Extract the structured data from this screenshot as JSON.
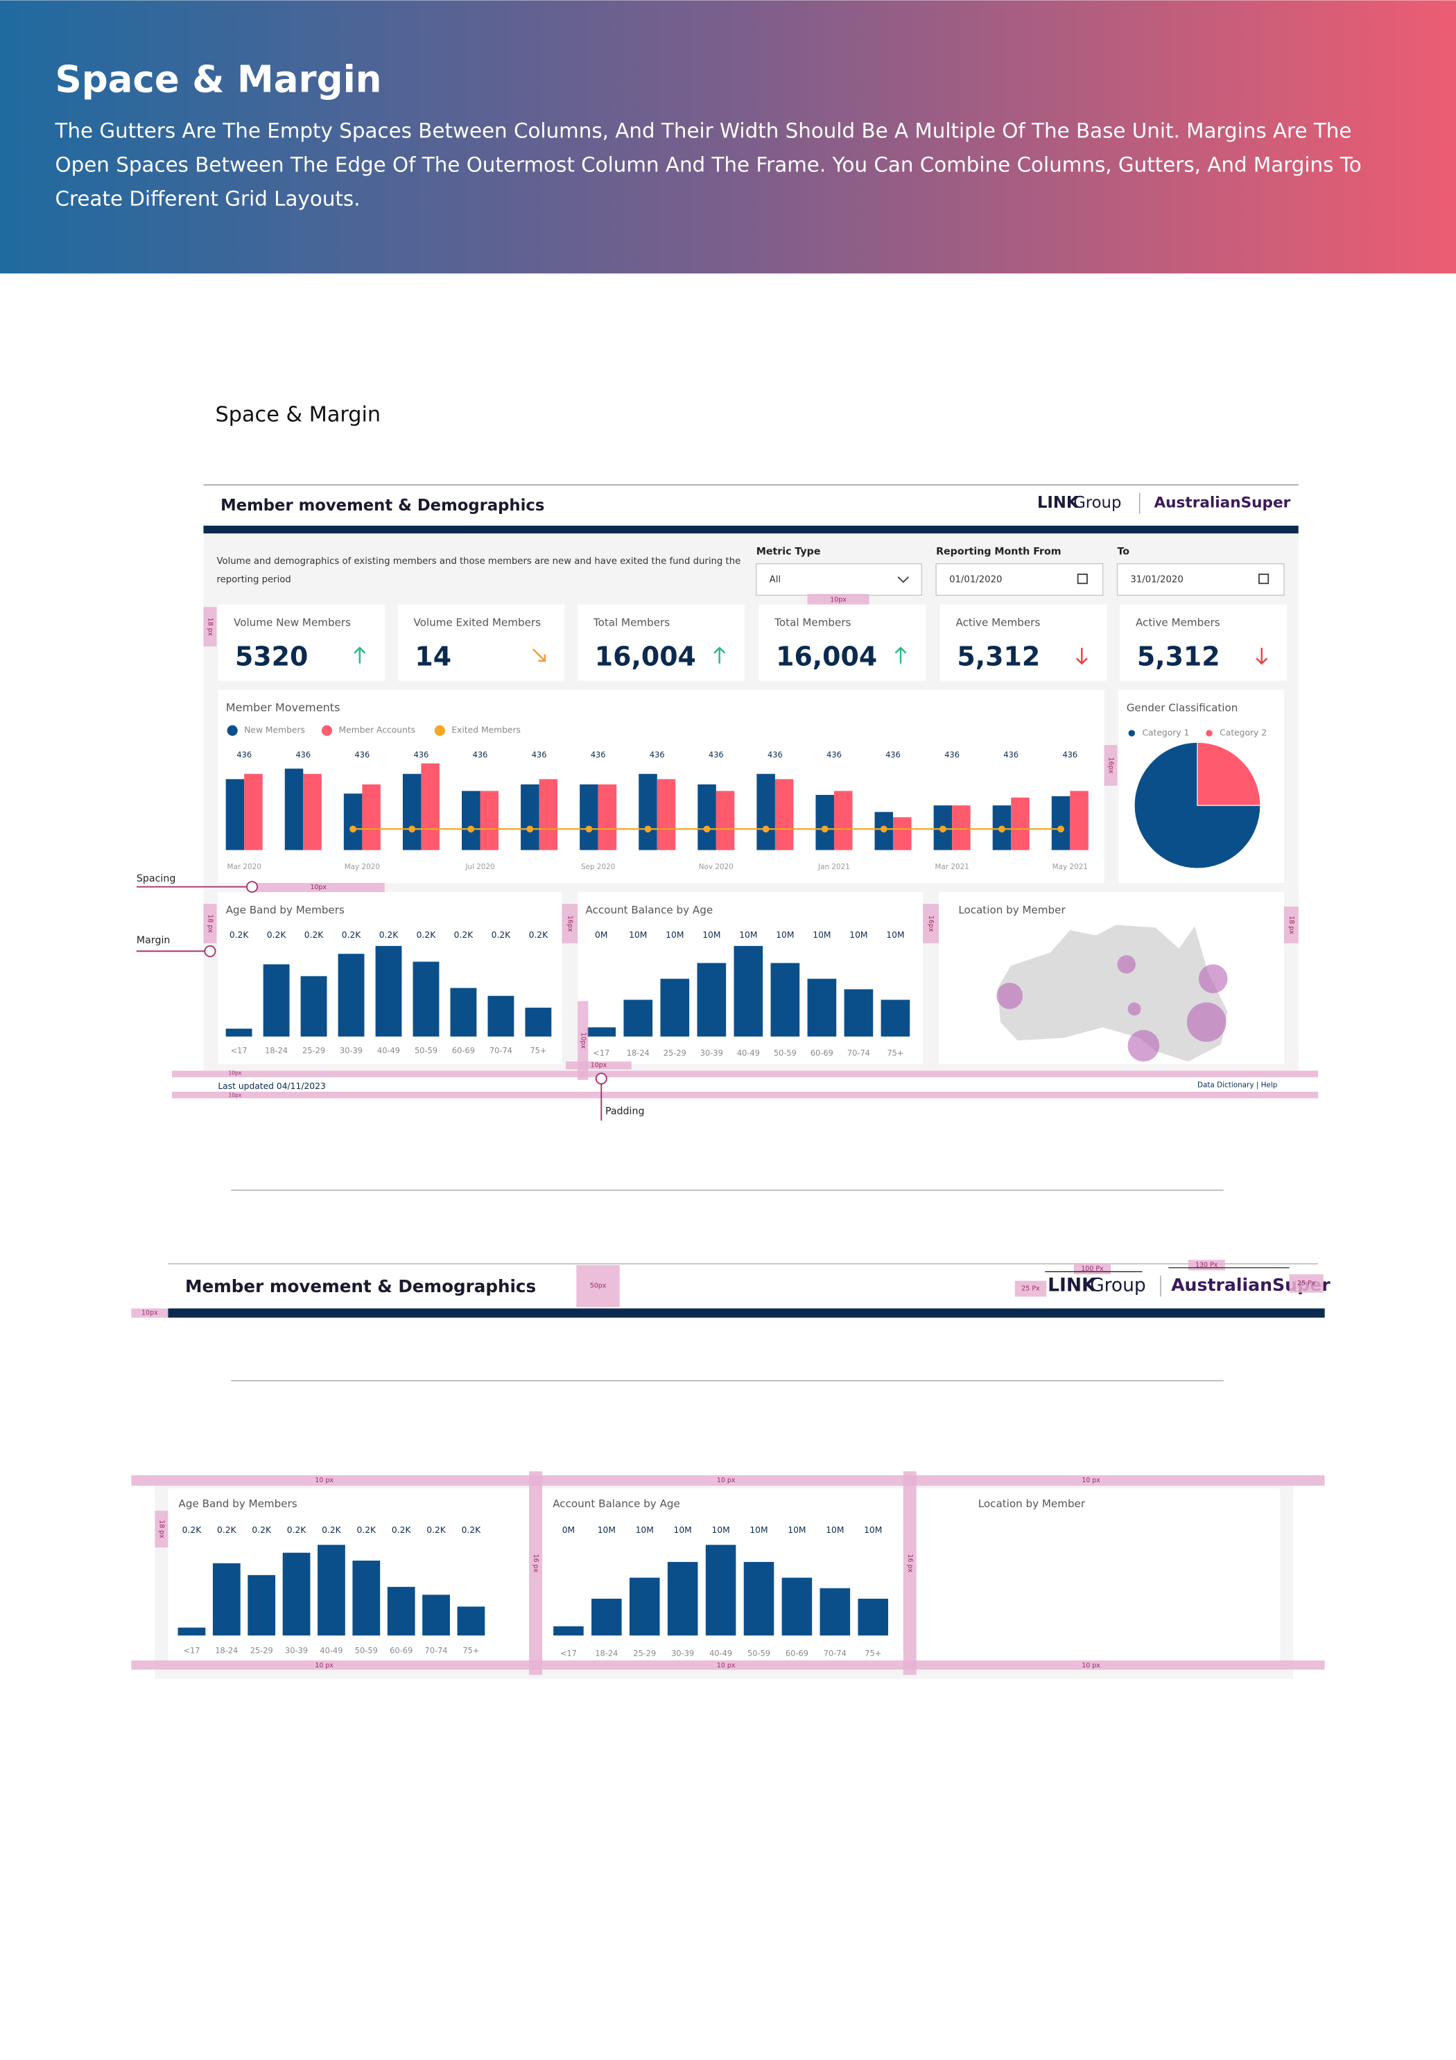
{
  "header": {
    "title": "Space & Margin",
    "description": [
      "The Gutters Are The Empty Spaces Between Columns, And Their Width Should Be A Multiple Of The Base Unit. Margins Are The",
      "Open Spaces Between The Edge Of The Outermost Column And The Frame. You Can Combine Columns, Gutters, And Margins To",
      "Create Different Grid Layouts."
    ]
  },
  "section_title": "Space & Margin",
  "dashboard": {
    "title": "Member movement & Demographics",
    "logo_link": "LINK",
    "logo_group": "Group",
    "logo_super": "AustralianSuper",
    "description": [
      "Volume and demographics of existing members and those members are new and have exited the fund during the",
      "reporting period"
    ],
    "filters": [
      {
        "label": "Metric Type",
        "value": "All"
      },
      {
        "label": "Reporting Month From",
        "value": "01/01/2020"
      },
      {
        "label": "To",
        "value": "31/01/2020"
      }
    ],
    "kpis": [
      {
        "label": "Volume New Members",
        "value": "5320",
        "trend": "up",
        "color": "#27b88a"
      },
      {
        "label": "Volume Exited Members",
        "value": "14",
        "trend": "down-right",
        "color": "#f39c32"
      },
      {
        "label": "Total Members",
        "value": "16,004",
        "trend": "up",
        "color": "#27b88a"
      },
      {
        "label": "Total Members",
        "value": "16,004",
        "trend": "up",
        "color": "#27b88a"
      },
      {
        "label": "Active Members",
        "value": "5,312",
        "trend": "down",
        "color": "#e8433f"
      },
      {
        "label": "Active Members",
        "value": "5,312",
        "trend": "down",
        "color": "#e8433f"
      }
    ],
    "map_title": "Location by Member",
    "footer_left": "Last updated 04/11/2023",
    "footer_right": "Data Dictionary  |  Help"
  },
  "chart_data": [
    {
      "type": "bar",
      "title": "Member Movements",
      "categories": [
        "Mar 2020",
        null,
        "May 2020",
        null,
        "Jul 2020",
        null,
        "Sep 2020",
        null,
        "Nov 2020",
        null,
        "Jan 2021",
        null,
        "Mar 2021",
        null,
        "May 2021"
      ],
      "series": [
        {
          "name": "New Members",
          "color": "#0b4f8a",
          "values": [
            54,
            62,
            43,
            58,
            45,
            50,
            50,
            58,
            50,
            58,
            42,
            29,
            34,
            34,
            41
          ]
        },
        {
          "name": "Member Accounts",
          "color": "#ff5a6e",
          "values": [
            58,
            58,
            50,
            66,
            45,
            54,
            50,
            54,
            45,
            54,
            45,
            25,
            34,
            40,
            45
          ]
        },
        {
          "name": "Exited Members",
          "color": "#f5a623",
          "type": "line",
          "values": [
            null,
            null,
            16,
            16,
            16,
            16,
            16,
            16,
            16,
            16,
            16,
            16,
            16,
            16,
            16
          ]
        }
      ],
      "data_labels": [
        436,
        436,
        436,
        436,
        436,
        436,
        436,
        436,
        436,
        436,
        436,
        436,
        436,
        436,
        436
      ],
      "ylim": [
        0,
        70
      ]
    },
    {
      "type": "pie",
      "title": "Gender Classification",
      "categories": [
        "Category 1",
        "Category 2"
      ],
      "values": [
        75,
        25
      ],
      "colors": [
        "#0b4f8a",
        "#ff5a6e"
      ]
    },
    {
      "type": "bar",
      "title": "Age Band by Members",
      "categories": [
        "<17",
        "18-24",
        "25-29",
        "30-39",
        "40-49",
        "50-59",
        "60-69",
        "70-74",
        "75+"
      ],
      "values": [
        6,
        55,
        46,
        63,
        69,
        57,
        37,
        31,
        22
      ],
      "data_labels": [
        "0.2K",
        "0.2K",
        "0.2K",
        "0.2K",
        "0.2K",
        "0.2K",
        "0.2K",
        "0.2K",
        "0.2K"
      ],
      "color": "#0b4f8a",
      "ylim": [
        0,
        70
      ]
    },
    {
      "type": "bar",
      "title": "Account Balance by Age",
      "categories": [
        "<17",
        "18-24",
        "25-29",
        "30-39",
        "40-49",
        "50-59",
        "60-69",
        "70-74",
        "75+"
      ],
      "values": [
        7,
        28,
        44,
        56,
        69,
        56,
        44,
        36,
        28
      ],
      "data_labels": [
        "0M",
        "10M",
        "10M",
        "10M",
        "10M",
        "10M",
        "10M",
        "10M",
        "10M"
      ],
      "color": "#0b4f8a",
      "ylim": [
        0,
        70
      ]
    }
  ],
  "annotations": {
    "spacing": "Spacing",
    "margin": "Margin",
    "padding": "Padding",
    "px10": "10px",
    "px18": "18 px",
    "px16": "16px",
    "px50": "50px",
    "px100": "100 Px",
    "px130": "130 Px",
    "px25": "25 Px",
    "px10b": "10 px",
    "px16b": "16 px"
  }
}
